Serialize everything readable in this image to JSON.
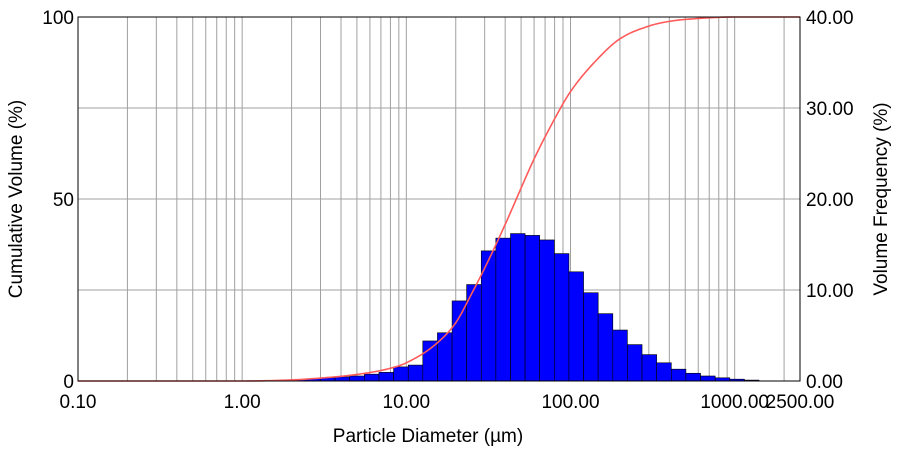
{
  "chart_data": {
    "type": "bar",
    "title": "",
    "xlabel": "Particle Diameter (µm)",
    "ylabel_left": "Cumulative Volume (%)",
    "ylabel_right": "Volume Frequency (%)",
    "x_scale": "log",
    "xlim": [
      0.1,
      2500
    ],
    "ylim_left": [
      0,
      100
    ],
    "ylim_right": [
      0,
      40
    ],
    "grid": true,
    "legend": "none",
    "x_ticks": [
      {
        "value": 0.1,
        "label": "0.10"
      },
      {
        "value": 1,
        "label": "1.00"
      },
      {
        "value": 10,
        "label": "10.00"
      },
      {
        "value": 100,
        "label": "100.00"
      },
      {
        "value": 1000,
        "label": "1000.00"
      },
      {
        "value": 2500,
        "label": "2500.00"
      }
    ],
    "y_left_ticks": [
      {
        "value": 0,
        "label": "0"
      },
      {
        "value": 50,
        "label": "50"
      },
      {
        "value": 100,
        "label": "100"
      }
    ],
    "y_right_ticks": [
      {
        "value": 0,
        "label": "0.00"
      },
      {
        "value": 10,
        "label": "10.00"
      },
      {
        "value": 20,
        "label": "20.00"
      },
      {
        "value": 30,
        "label": "30.00"
      },
      {
        "value": 40,
        "label": "40.00"
      }
    ],
    "colors": {
      "bars": "#0000ff",
      "bar_edge": "#000000",
      "curve": "#ff5a5a",
      "grid": "#a0a0a0"
    },
    "series": [
      {
        "kind": "bar",
        "axis": "right",
        "bin_edges": [
          1.99,
          2.44,
          2.99,
          3.68,
          4.52,
          5.55,
          6.81,
          8.36,
          10.27,
          12.6,
          15.47,
          19.0,
          23.3,
          28.6,
          35.1,
          43.1,
          52.9,
          64.9,
          79.7,
          97.8,
          120.1,
          147.4,
          181.0,
          222.0,
          272.7,
          334.8,
          411.0,
          504.6,
          619.4,
          760.5,
          933.6,
          1146.1,
          1407.0
        ],
        "values": [
          0.15,
          0.25,
          0.35,
          0.45,
          0.55,
          0.75,
          0.95,
          1.55,
          1.75,
          4.4,
          5.3,
          8.8,
          10.6,
          14.3,
          15.7,
          16.2,
          16.0,
          15.5,
          14.0,
          12.0,
          9.7,
          7.4,
          5.6,
          4.0,
          2.9,
          2.0,
          1.3,
          0.85,
          0.55,
          0.35,
          0.2,
          0.1
        ]
      },
      {
        "kind": "line",
        "axis": "left",
        "x": [
          0.1,
          1.0,
          2.0,
          3.0,
          5.0,
          8.0,
          10.0,
          15.0,
          20.0,
          25.0,
          30.0,
          40.0,
          50.0,
          60.0,
          80.0,
          100.0,
          150.0,
          200.0,
          300.0,
          400.0,
          600.0,
          1000.0,
          2500.0
        ],
        "y": [
          0.0,
          0.0,
          0.3,
          0.8,
          1.8,
          3.5,
          5.0,
          10.0,
          16.0,
          24.0,
          31.0,
          43.0,
          53.0,
          61.0,
          72.0,
          79.5,
          89.0,
          94.0,
          97.5,
          98.8,
          99.6,
          100.0,
          100.0
        ]
      }
    ]
  }
}
